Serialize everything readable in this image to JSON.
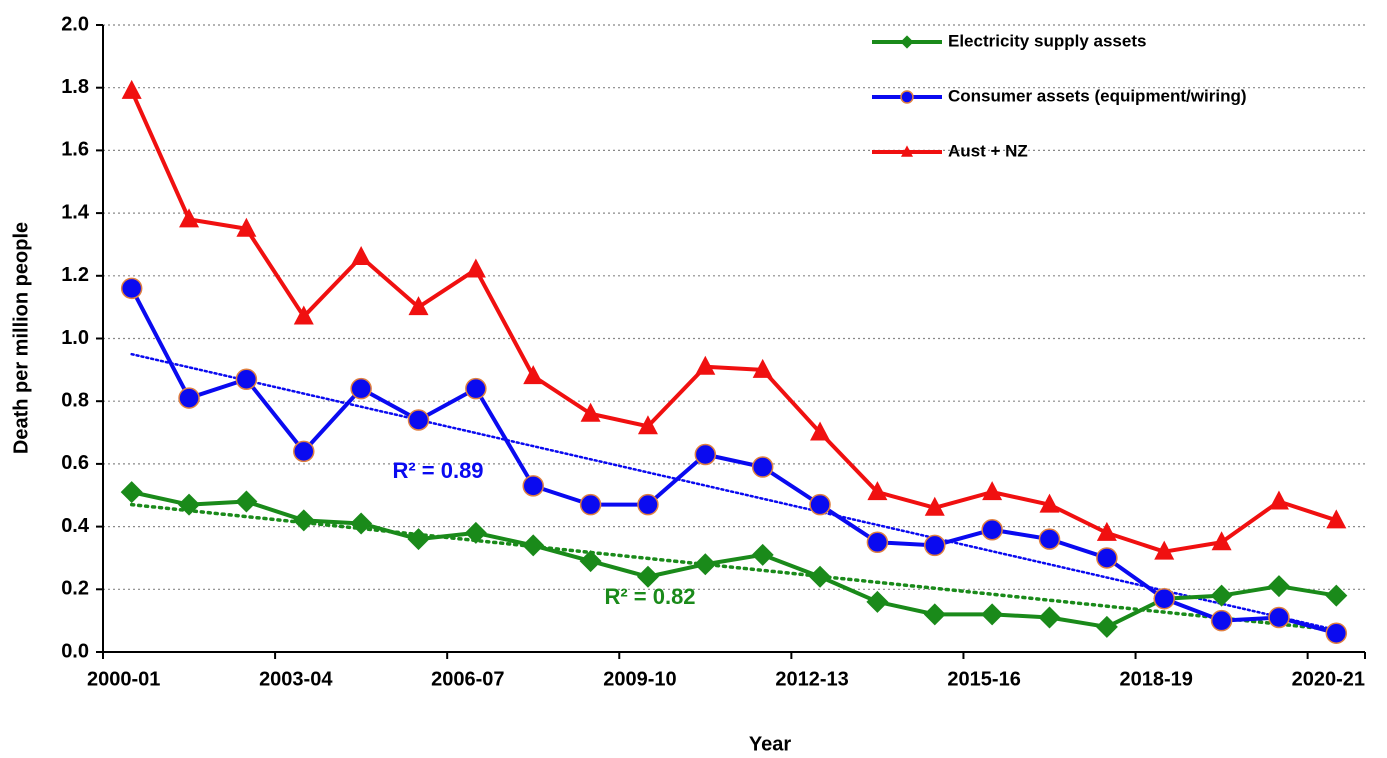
{
  "chart_data": {
    "type": "line",
    "x_label": "Year",
    "y_label": "Death per million people",
    "categories": [
      "2000-01",
      null,
      null,
      "2003-04",
      null,
      null,
      "2006-07",
      null,
      null,
      "2009-10",
      null,
      null,
      "2012-13",
      null,
      null,
      "2015-16",
      null,
      null,
      "2018-19",
      null,
      null,
      "2020-21"
    ],
    "series": [
      {
        "name": "Electricity supply assets",
        "color": "#1a8a1a",
        "marker": "diamond",
        "values": [
          0.51,
          0.47,
          0.48,
          0.42,
          0.41,
          0.36,
          0.38,
          0.34,
          0.29,
          0.24,
          0.28,
          0.31,
          0.24,
          0.16,
          0.12,
          0.12,
          0.11,
          0.08,
          0.17,
          0.18,
          0.21,
          0.18
        ]
      },
      {
        "name": "Consumer assets (equipment/wiring)",
        "color": "#0a0af0",
        "marker": "circle",
        "values": [
          1.16,
          0.81,
          0.87,
          0.64,
          0.84,
          0.74,
          0.84,
          0.53,
          0.47,
          0.47,
          0.63,
          0.59,
          0.47,
          0.35,
          0.34,
          0.39,
          0.36,
          0.3,
          0.17,
          0.1,
          0.11,
          0.06
        ]
      },
      {
        "name": "Aust + NZ",
        "color": "#f01010",
        "marker": "triangle",
        "values": [
          1.79,
          1.38,
          1.35,
          1.07,
          1.26,
          1.1,
          1.22,
          0.88,
          0.76,
          0.72,
          0.91,
          0.9,
          0.7,
          0.51,
          0.46,
          0.51,
          0.47,
          0.38,
          0.32,
          0.35,
          0.48,
          0.42
        ]
      }
    ],
    "trendlines": [
      {
        "color": "#1a8a1a",
        "values": [
          0.47,
          0.07
        ],
        "annotation": "R² = 0.82"
      },
      {
        "color": "#0a0af0",
        "values": [
          0.95,
          0.07
        ],
        "annotation": "R² = 0.89"
      }
    ],
    "ylim": [
      0,
      2.0
    ],
    "yticks": [
      {
        "value": 0,
        "label": "0.0"
      },
      0.2,
      0.4,
      0.6,
      0.8,
      {
        "value": 1,
        "label": "1.0"
      },
      1.2,
      1.4,
      1.6,
      1.8,
      {
        "value": 2,
        "label": "2.0"
      }
    ],
    "grid": true,
    "legend": "top-right"
  }
}
